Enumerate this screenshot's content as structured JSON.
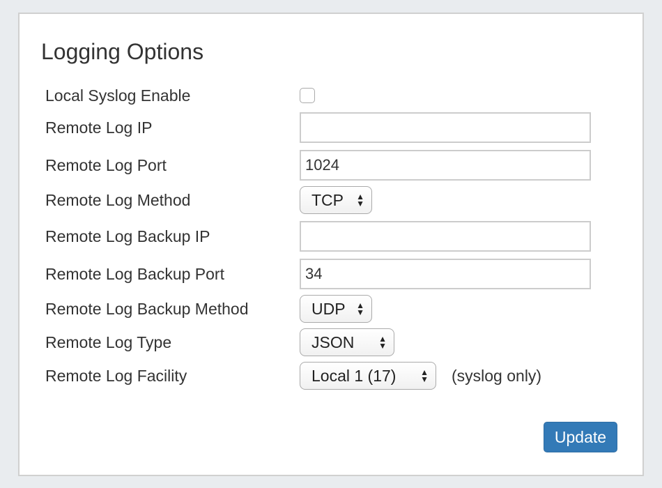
{
  "title": "Logging Options",
  "fields": [
    {
      "label": "Local Syslog Enable",
      "type": "checkbox",
      "checked": false
    },
    {
      "label": "Remote Log IP",
      "type": "text",
      "value": ""
    },
    {
      "label": "Remote Log Port",
      "type": "text",
      "value": "1024"
    },
    {
      "label": "Remote Log Method",
      "type": "select",
      "value": "TCP"
    },
    {
      "label": "Remote Log Backup IP",
      "type": "text",
      "value": ""
    },
    {
      "label": "Remote Log Backup Port",
      "type": "text",
      "value": "34"
    },
    {
      "label": "Remote Log Backup Method",
      "type": "select",
      "value": "UDP"
    },
    {
      "label": "Remote Log Type",
      "type": "select",
      "value": "JSON"
    },
    {
      "label": "Remote Log Facility",
      "type": "select",
      "value": "Local 1 (17)",
      "note": "(syslog only)"
    }
  ],
  "update_label": "Update",
  "colors": {
    "primary": "#337ab7",
    "background": "#e9ecef"
  }
}
